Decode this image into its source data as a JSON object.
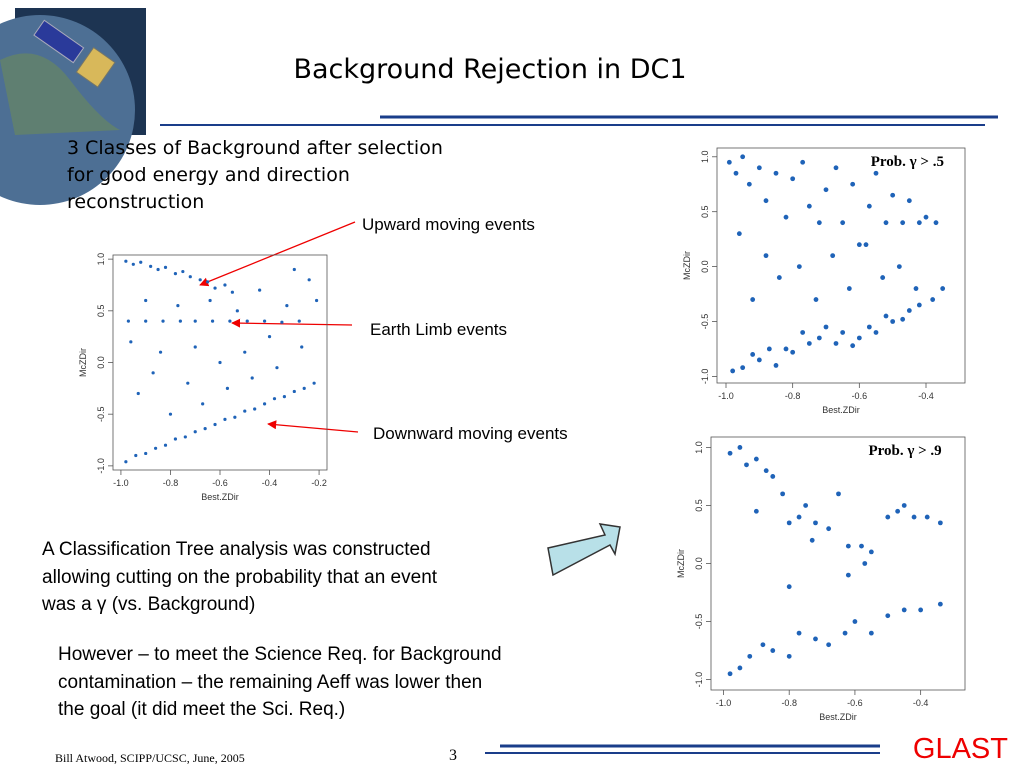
{
  "slide": {
    "title": "Background Rejection in DC1",
    "intro": [
      "3 Classes of Background after selection",
      "for good energy and direction",
      "reconstruction"
    ],
    "annotations": [
      "Upward moving events",
      "Earth Limb  events",
      "Downward moving events"
    ],
    "body1": [
      "A Classification Tree analysis was constructed",
      "allowing cutting on the probability that an event",
      "was a γ (vs. Background)"
    ],
    "body2": [
      "However – to meet the Science Req. for Background",
      "contamination – the remaining Aeff was lower then",
      "the goal (it did meet the Sci. Req.)"
    ],
    "footer": "Bill Atwood,  SCIPP/UCSC, June, 2005",
    "page": "3",
    "logo": "GLAST"
  },
  "chart_data": [
    {
      "type": "scatter",
      "xlabel": "Best.ZDir",
      "ylabel": "McZDir",
      "color": "#1f63b8",
      "xlim": [
        -1.032,
        -0.168
      ],
      "ylim": [
        -1.04,
        1.04
      ],
      "xticks": [
        {
          "value": -1,
          "label": "-1.0"
        },
        {
          "value": -0.8,
          "label": "-0.8"
        },
        {
          "value": -0.6,
          "label": "-0.6"
        },
        {
          "value": -0.4,
          "label": "-0.4"
        },
        {
          "value": -0.2,
          "label": "-0.2"
        }
      ],
      "yticks": [
        {
          "value": -1,
          "label": "-1.0"
        },
        -0.5,
        {
          "value": 0,
          "label": "0.0"
        },
        0.5,
        {
          "value": 1,
          "label": "1.0"
        }
      ],
      "x": [
        -0.98,
        -0.95,
        -0.92,
        -0.88,
        -0.85,
        -0.82,
        -0.78,
        -0.75,
        -0.72,
        -0.68,
        -0.65,
        -0.62,
        -0.58,
        -0.55,
        -0.97,
        -0.9,
        -0.83,
        -0.76,
        -0.7,
        -0.63,
        -0.56,
        -0.49,
        -0.42,
        -0.35,
        -0.28,
        -0.98,
        -0.94,
        -0.9,
        -0.86,
        -0.82,
        -0.78,
        -0.74,
        -0.7,
        -0.66,
        -0.62,
        -0.58,
        -0.54,
        -0.5,
        -0.46,
        -0.42,
        -0.38,
        -0.34,
        -0.3,
        -0.26,
        -0.22,
        -0.96,
        -0.93,
        -0.9,
        -0.87,
        -0.84,
        -0.8,
        -0.77,
        -0.73,
        -0.7,
        -0.67,
        -0.64,
        -0.6,
        -0.57,
        -0.53,
        -0.5,
        -0.47,
        -0.44,
        -0.4,
        -0.37,
        -0.33,
        -0.3,
        -0.27,
        -0.24,
        -0.21
      ],
      "y": [
        0.98,
        0.95,
        0.97,
        0.93,
        0.9,
        0.92,
        0.86,
        0.88,
        0.83,
        0.8,
        0.78,
        0.72,
        0.75,
        0.68,
        0.4,
        0.4,
        0.4,
        0.4,
        0.4,
        0.4,
        0.4,
        0.4,
        0.4,
        0.39,
        0.4,
        -0.96,
        -0.9,
        -0.88,
        -0.83,
        -0.8,
        -0.74,
        -0.72,
        -0.67,
        -0.64,
        -0.6,
        -0.55,
        -0.53,
        -0.47,
        -0.45,
        -0.4,
        -0.35,
        -0.33,
        -0.28,
        -0.25,
        -0.2,
        0.2,
        -0.3,
        0.6,
        -0.1,
        0.1,
        -0.5,
        0.55,
        -0.2,
        0.15,
        -0.4,
        0.6,
        0.0,
        -0.25,
        0.5,
        0.1,
        -0.15,
        0.7,
        0.25,
        -0.05,
        0.55,
        0.9,
        0.15,
        0.8,
        0.6
      ]
    },
    {
      "type": "scatter",
      "xlabel": "Best.ZDir",
      "ylabel": "McZDir",
      "color": "#1f63b8",
      "annotation": "Prob. γ > .5",
      "xlim": [
        -1.027,
        -0.283
      ],
      "ylim": [
        -1.06,
        1.08
      ],
      "xticks": [
        {
          "value": -1,
          "label": "-1.0"
        },
        {
          "value": -0.8,
          "label": "-0.8"
        },
        {
          "value": -0.6,
          "label": "-0.6"
        },
        {
          "value": -0.4,
          "label": "-0.4"
        }
      ],
      "yticks": [
        {
          "value": -1,
          "label": "-1.0"
        },
        -0.5,
        {
          "value": 0,
          "label": "0.0"
        },
        0.5,
        {
          "value": 1,
          "label": "1.0"
        }
      ],
      "x": [
        -0.99,
        -0.97,
        -0.95,
        -0.93,
        -0.9,
        -0.88,
        -0.85,
        -0.82,
        -0.8,
        -0.77,
        -0.75,
        -0.72,
        -0.7,
        -0.67,
        -0.65,
        -0.62,
        -0.6,
        -0.57,
        -0.55,
        -0.52,
        -0.5,
        -0.47,
        -0.45,
        -0.42,
        -0.4,
        -0.37,
        -0.98,
        -0.95,
        -0.92,
        -0.9,
        -0.87,
        -0.85,
        -0.82,
        -0.8,
        -0.77,
        -0.75,
        -0.72,
        -0.7,
        -0.67,
        -0.65,
        -0.62,
        -0.6,
        -0.57,
        -0.55,
        -0.52,
        -0.5,
        -0.47,
        -0.45,
        -0.42,
        -0.38,
        -0.35,
        -0.96,
        -0.92,
        -0.88,
        -0.84,
        -0.78,
        -0.73,
        -0.68,
        -0.63,
        -0.58,
        -0.53,
        -0.48,
        -0.43
      ],
      "y": [
        0.95,
        0.85,
        1.0,
        0.75,
        0.9,
        0.6,
        0.85,
        0.45,
        0.8,
        0.95,
        0.55,
        0.4,
        0.7,
        0.9,
        0.4,
        0.75,
        0.2,
        0.55,
        0.85,
        0.4,
        0.65,
        0.4,
        0.6,
        0.4,
        0.45,
        0.4,
        -0.95,
        -0.92,
        -0.8,
        -0.85,
        -0.75,
        -0.9,
        -0.75,
        -0.78,
        -0.6,
        -0.7,
        -0.65,
        -0.55,
        -0.7,
        -0.6,
        -0.72,
        -0.65,
        -0.55,
        -0.6,
        -0.45,
        -0.5,
        -0.48,
        -0.4,
        -0.35,
        -0.3,
        -0.2,
        0.3,
        -0.3,
        0.1,
        -0.1,
        0.0,
        -0.3,
        0.1,
        -0.2,
        0.2,
        -0.1,
        0.0,
        -0.2
      ]
    },
    {
      "type": "scatter",
      "xlabel": "Best.ZDir",
      "ylabel": "McZDir",
      "color": "#1f63b8",
      "annotation": "Prob. γ > .9",
      "xlim": [
        -1.038,
        -0.265
      ],
      "ylim": [
        -1.09,
        1.09
      ],
      "xticks": [
        {
          "value": -1,
          "label": "-1.0"
        },
        {
          "value": -0.8,
          "label": "-0.8"
        },
        {
          "value": -0.6,
          "label": "-0.6"
        },
        {
          "value": -0.4,
          "label": "-0.4"
        }
      ],
      "yticks": [
        {
          "value": -1,
          "label": "-1.0"
        },
        -0.5,
        {
          "value": 0,
          "label": "0.0"
        },
        0.5,
        {
          "value": 1,
          "label": "1.0"
        }
      ],
      "x": [
        -0.98,
        -0.95,
        -0.93,
        -0.9,
        -0.87,
        -0.85,
        -0.82,
        -0.8,
        -0.77,
        -0.75,
        -0.72,
        -0.68,
        -0.65,
        -0.62,
        -0.58,
        -0.55,
        -0.5,
        -0.47,
        -0.45,
        -0.42,
        -0.38,
        -0.34,
        -0.98,
        -0.95,
        -0.92,
        -0.88,
        -0.85,
        -0.8,
        -0.77,
        -0.72,
        -0.68,
        -0.63,
        -0.6,
        -0.55,
        -0.5,
        -0.45,
        -0.4,
        -0.34,
        -0.9,
        -0.8,
        -0.73,
        -0.62,
        -0.57
      ],
      "y": [
        0.95,
        1.0,
        0.85,
        0.9,
        0.8,
        0.75,
        0.6,
        0.35,
        0.4,
        0.5,
        0.35,
        0.3,
        0.6,
        0.15,
        0.15,
        0.1,
        0.4,
        0.45,
        0.5,
        0.4,
        0.4,
        0.35,
        -0.95,
        -0.9,
        -0.8,
        -0.7,
        -0.75,
        -0.8,
        -0.6,
        -0.65,
        -0.7,
        -0.6,
        -0.5,
        -0.6,
        -0.45,
        -0.4,
        -0.4,
        -0.35,
        0.45,
        -0.2,
        0.2,
        -0.1,
        0.0
      ]
    }
  ]
}
